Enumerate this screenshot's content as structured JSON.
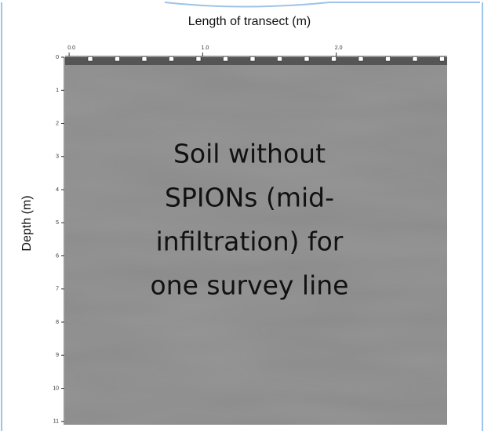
{
  "chart_data": {
    "type": "image",
    "x_label": "Length of transect (m)",
    "y_label": "Depth (m)",
    "annotation": [
      "Soil  without",
      "SPIONs (mid-",
      "infiltration) for",
      "one survey line"
    ],
    "xlim": [
      -0.03,
      2.83
    ],
    "xticks": [
      {
        "value": 0,
        "label": "0.0"
      },
      {
        "value": 1,
        "label": "1.0"
      },
      {
        "value": 2,
        "label": "2.0"
      }
    ],
    "ylim": [
      0,
      11.1
    ],
    "yticks": [
      0,
      1,
      2,
      3,
      4,
      5,
      6,
      7,
      8,
      9,
      10,
      11
    ],
    "color": "#8a8a8a"
  }
}
